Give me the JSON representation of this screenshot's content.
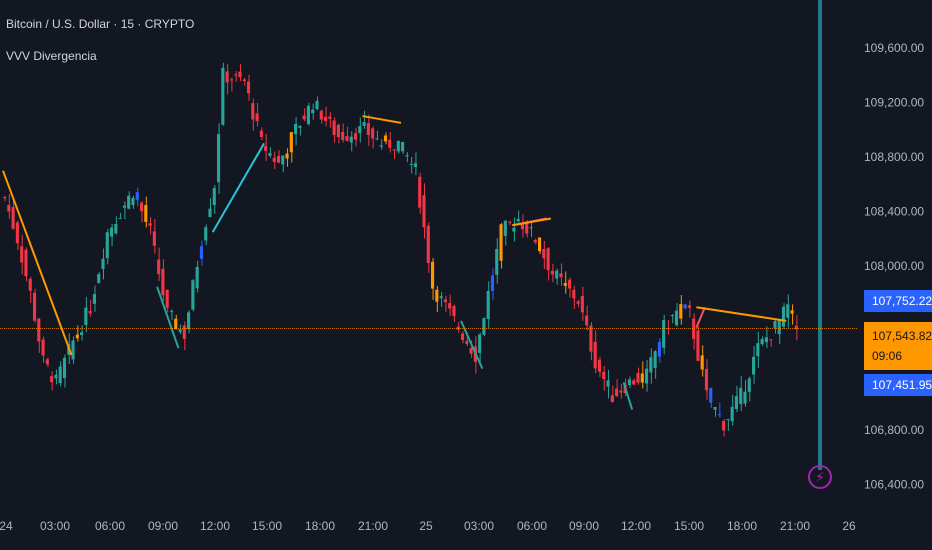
{
  "chart_data": {
    "type": "candlestick",
    "title": "Bitcoin / U.S. Dollar · 15 · CRYPTO",
    "indicator": "VVV Divergencia",
    "ylim": [
      106200,
      109950
    ],
    "y_ticks": [
      "109,600.00",
      "109,200.00",
      "108,800.00",
      "108,400.00",
      "108,000.00",
      "106,800.00",
      "106,400.00"
    ],
    "y_tick_values": [
      109600,
      109200,
      108800,
      108400,
      108000,
      106800,
      106400
    ],
    "x_ticks": [
      "24",
      "03:00",
      "06:00",
      "09:00",
      "12:00",
      "15:00",
      "18:00",
      "21:00",
      "25",
      "03:00",
      "06:00",
      "09:00",
      "12:00",
      "15:00",
      "18:00",
      "21:00",
      "26"
    ],
    "bars_visible": 200,
    "last_price": "107,543.82",
    "countdown": "09:06",
    "tag_high": "107,752.22",
    "tag_low": "107,451.95",
    "last_price_value": 107543.82,
    "tag_high_value": 107752.22,
    "tag_low_value": 107451.95,
    "anchors": [
      [
        0,
        108500
      ],
      [
        3,
        108200
      ],
      [
        6,
        107800
      ],
      [
        9,
        107300
      ],
      [
        12,
        107150
      ],
      [
        16,
        107450
      ],
      [
        20,
        107700
      ],
      [
        24,
        108250
      ],
      [
        30,
        108550
      ],
      [
        34,
        108250
      ],
      [
        38,
        107650
      ],
      [
        42,
        107500
      ],
      [
        46,
        108200
      ],
      [
        49,
        108600
      ],
      [
        51,
        109400
      ],
      [
        56,
        109350
      ],
      [
        60,
        108900
      ],
      [
        64,
        108750
      ],
      [
        68,
        109000
      ],
      [
        72,
        109200
      ],
      [
        78,
        108950
      ],
      [
        84,
        109000
      ],
      [
        88,
        108900
      ],
      [
        92,
        108900
      ],
      [
        96,
        108700
      ],
      [
        100,
        107850
      ],
      [
        104,
        107650
      ],
      [
        110,
        107350
      ],
      [
        116,
        108250
      ],
      [
        120,
        108350
      ],
      [
        124,
        108200
      ],
      [
        128,
        107950
      ],
      [
        134,
        107750
      ],
      [
        138,
        107300
      ],
      [
        142,
        107050
      ],
      [
        146,
        107150
      ],
      [
        150,
        107200
      ],
      [
        154,
        107550
      ],
      [
        158,
        107700
      ],
      [
        160,
        107650
      ],
      [
        164,
        107050
      ],
      [
        168,
        106850
      ],
      [
        172,
        107050
      ],
      [
        176,
        107400
      ],
      [
        180,
        107550
      ],
      [
        183,
        107700
      ],
      [
        185,
        107543
      ]
    ],
    "series": [
      {
        "name": "",
        "color": "#ff9800",
        "points": [
          [
            0,
            108700
          ],
          [
            16,
            107350
          ]
        ]
      },
      {
        "name": "",
        "color": "#26c6da",
        "points": [
          [
            49,
            108250
          ],
          [
            61,
            108900
          ]
        ]
      },
      {
        "name": "",
        "color": "#26a69a",
        "points": [
          [
            36,
            107850
          ],
          [
            41,
            107400
          ]
        ]
      },
      {
        "name": "",
        "color": "#ff9800",
        "points": [
          [
            84,
            109100
          ],
          [
            93,
            109050
          ]
        ]
      },
      {
        "name": "",
        "color": "#f7525f",
        "points": [
          [
            119,
            108300
          ],
          [
            127,
            108350
          ]
        ]
      },
      {
        "name": "",
        "color": "#ff9800",
        "points": [
          [
            119,
            108300
          ],
          [
            128,
            108350
          ]
        ]
      },
      {
        "name": "",
        "color": "#26a69a",
        "points": [
          [
            107,
            107600
          ],
          [
            112,
            107250
          ]
        ]
      },
      {
        "name": "",
        "color": "#f7525f",
        "points": [
          [
            162,
            107550
          ],
          [
            164,
            107700
          ]
        ]
      },
      {
        "name": "",
        "color": "#ff9800",
        "points": [
          [
            162,
            107700
          ],
          [
            183,
            107600
          ]
        ]
      },
      {
        "name": "",
        "color": "#26a69a",
        "points": [
          [
            145,
            107150
          ],
          [
            147,
            106950
          ]
        ]
      }
    ],
    "colors": {
      "up": "#26a69a",
      "down": "#f23645",
      "orange": "#ff9800",
      "blue": "#2962ff",
      "vline": "#1e7a8a",
      "bg": "#131722",
      "price_line": "#ff9800"
    },
    "grid": false
  }
}
